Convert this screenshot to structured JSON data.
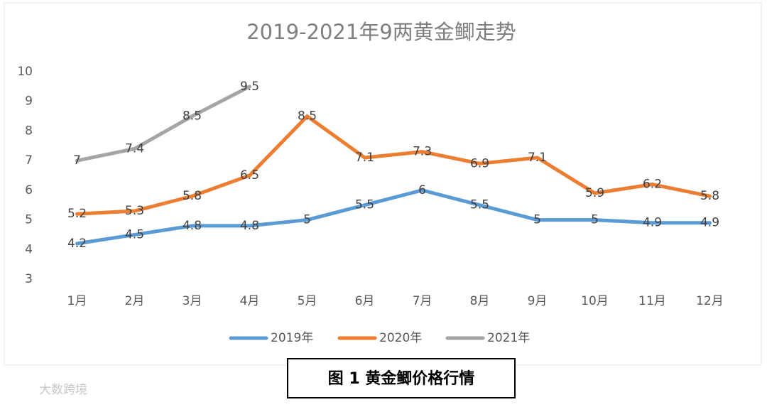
{
  "chart_data": {
    "type": "line",
    "title": "2019-2021年9两黄金鲫走势",
    "categories": [
      "1月",
      "2月",
      "3月",
      "4月",
      "5月",
      "6月",
      "7月",
      "8月",
      "9月",
      "10月",
      "11月",
      "12月"
    ],
    "series": [
      {
        "name": "2019年",
        "color": "#5b9bd5",
        "values": [
          4.2,
          4.5,
          4.8,
          4.8,
          5,
          5.5,
          6,
          5.5,
          5,
          5,
          4.9,
          4.9
        ]
      },
      {
        "name": "2020年",
        "color": "#ed7d31",
        "values": [
          5.2,
          5.3,
          5.8,
          6.5,
          8.5,
          7.1,
          7.3,
          6.9,
          7.1,
          5.9,
          6.2,
          5.8
        ]
      },
      {
        "name": "2021年",
        "color": "#a5a5a5",
        "values": [
          7,
          7.4,
          8.5,
          9.5,
          null,
          null,
          null,
          null,
          null,
          null,
          null,
          null
        ]
      }
    ],
    "ylim": [
      3,
      10
    ],
    "yticks": [
      3,
      4,
      5,
      6,
      7,
      8,
      9,
      10
    ],
    "grid": false,
    "legend": "bottom"
  },
  "caption": "图 1  黄金鲫价格行情",
  "watermark": "大数跨境"
}
